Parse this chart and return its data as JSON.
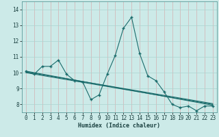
{
  "title": "",
  "xlabel": "Humidex (Indice chaleur)",
  "ylabel": "",
  "bg_color": "#cceae8",
  "grid_color": "#aad4d0",
  "line_color": "#1a6b6b",
  "xlim": [
    -0.5,
    23.5
  ],
  "ylim": [
    7.5,
    14.5
  ],
  "xticks": [
    0,
    1,
    2,
    3,
    4,
    5,
    6,
    7,
    8,
    9,
    10,
    11,
    12,
    13,
    14,
    15,
    16,
    17,
    18,
    19,
    20,
    21,
    22,
    23
  ],
  "yticks": [
    8,
    9,
    10,
    11,
    12,
    13,
    14
  ],
  "line1_x": [
    0,
    1,
    2,
    3,
    4,
    5,
    6,
    7,
    8,
    9,
    10,
    11,
    12,
    13,
    14,
    15,
    16,
    17,
    18,
    19,
    20,
    21,
    22,
    23
  ],
  "line1_y": [
    10.1,
    9.9,
    10.4,
    10.4,
    10.8,
    9.9,
    9.5,
    9.4,
    8.3,
    8.6,
    9.9,
    11.1,
    12.8,
    13.5,
    11.2,
    9.8,
    9.5,
    8.8,
    8.0,
    7.8,
    7.9,
    7.6,
    7.9,
    7.9
  ],
  "reg_lines": [
    [
      [
        0,
        23
      ],
      [
        10.05,
        8.05
      ]
    ],
    [
      [
        0,
        23
      ],
      [
        10.1,
        7.95
      ]
    ],
    [
      [
        0,
        23
      ],
      [
        10.0,
        8.0
      ]
    ]
  ],
  "marker": "+"
}
